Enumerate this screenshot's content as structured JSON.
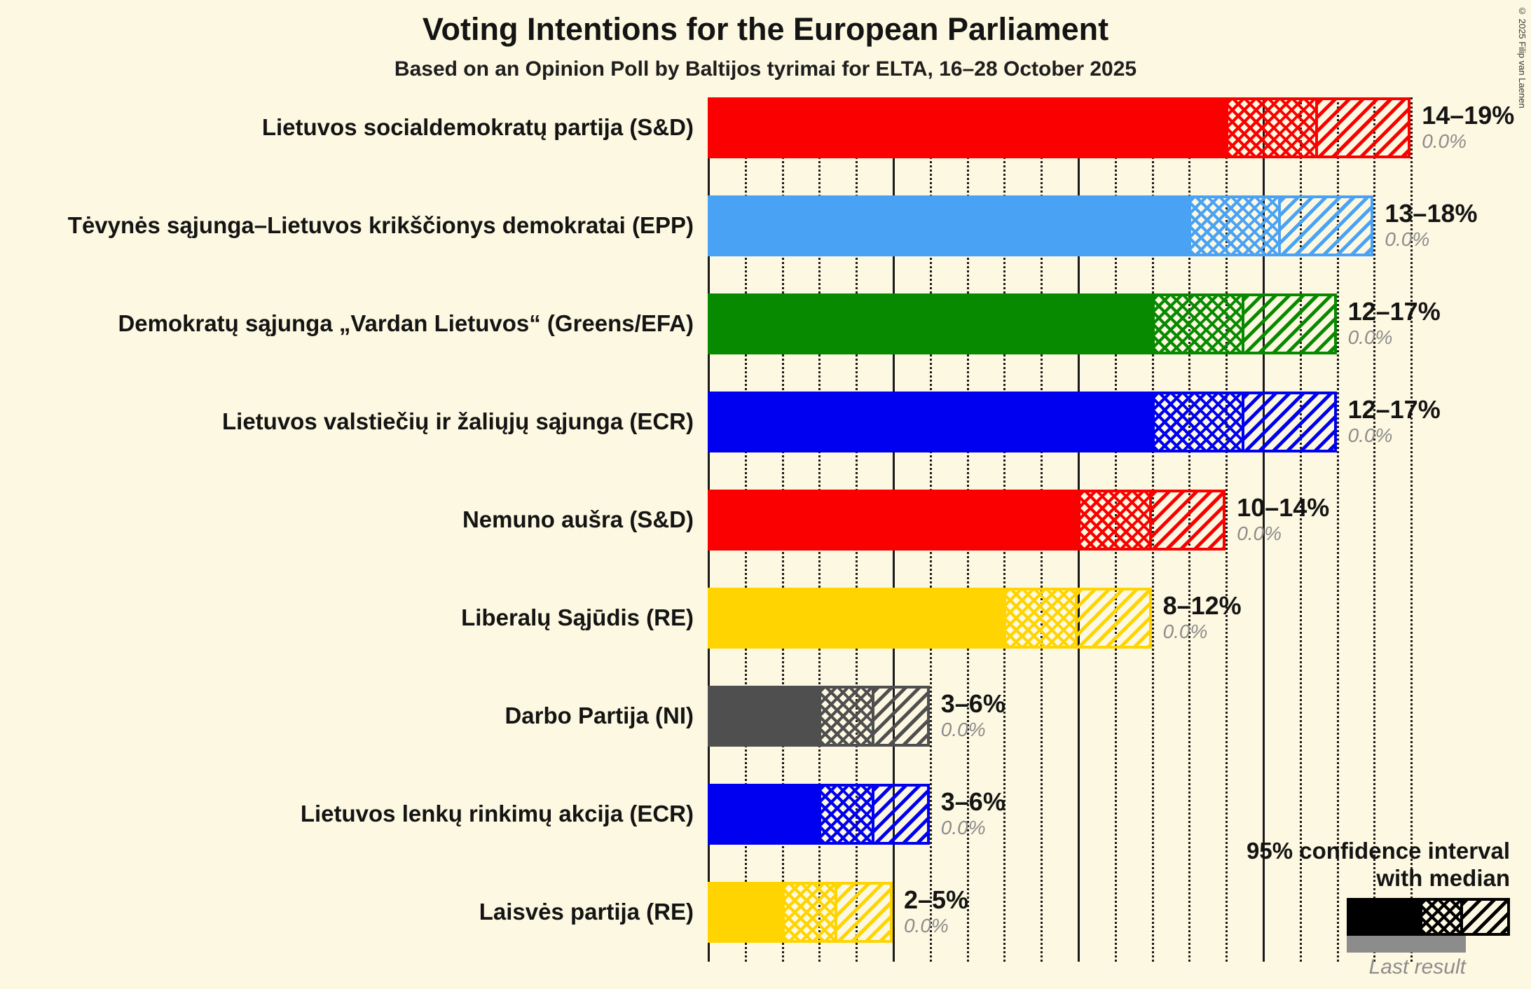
{
  "chart_data": {
    "type": "bar",
    "orientation": "horizontal",
    "title": "Voting Intentions for the European Parliament",
    "subtitle": "Based on an Opinion Poll by Baltijos tyrimai for ELTA, 16–28 October 2025",
    "x_axis": {
      "min": 0,
      "max": 19,
      "unit": "%",
      "dotted_step": 1,
      "solid_step": 5,
      "tick_labels_shown": false
    },
    "legend_position": "bottom-right",
    "bars": [
      {
        "party": "Lietuvos socialdemokratų partija (S&D)",
        "color": "#FA0000",
        "low": 14,
        "median": 16.5,
        "high": 19,
        "range_label": "14–19%",
        "last_result": "0.0%"
      },
      {
        "party": "Tėvynės sąjunga–Lietuvos krikščionys demokratai (EPP)",
        "color": "#4AA2F4",
        "low": 13,
        "median": 15.5,
        "high": 18,
        "range_label": "13–18%",
        "last_result": "0.0%"
      },
      {
        "party": "Demokratų sąjunga „Vardan Lietuvos“ (Greens/EFA)",
        "color": "#088A00",
        "low": 12,
        "median": 14.5,
        "high": 17,
        "range_label": "12–17%",
        "last_result": "0.0%"
      },
      {
        "party": "Lietuvos valstiečių ir žaliųjų sąjunga (ECR)",
        "color": "#0000F0",
        "low": 12,
        "median": 14.5,
        "high": 17,
        "range_label": "12–17%",
        "last_result": "0.0%"
      },
      {
        "party": "Nemuno aušra (S&D)",
        "color": "#FA0000",
        "low": 10,
        "median": 12,
        "high": 14,
        "range_label": "10–14%",
        "last_result": "0.0%"
      },
      {
        "party": "Liberalų Sąjūdis (RE)",
        "color": "#FFD400",
        "low": 8,
        "median": 10,
        "high": 12,
        "range_label": "8–12%",
        "last_result": "0.0%"
      },
      {
        "party": "Darbo Partija (NI)",
        "color": "#4F4F4F",
        "low": 3,
        "median": 4.5,
        "high": 6,
        "range_label": "3–6%",
        "last_result": "0.0%"
      },
      {
        "party": "Lietuvos lenkų rinkimų akcija (ECR)",
        "color": "#0000F0",
        "low": 3,
        "median": 4.5,
        "high": 6,
        "range_label": "3–6%",
        "last_result": "0.0%"
      },
      {
        "party": "Laisvės partija (RE)",
        "color": "#FFD400",
        "low": 2,
        "median": 3.5,
        "high": 5,
        "range_label": "2–5%",
        "last_result": "0.0%"
      }
    ]
  },
  "legend": {
    "line1": "95% confidence interval",
    "line2": "with median",
    "last_result_label": "Last result"
  },
  "copyright": "© 2025 Filip van Laenen",
  "colors": {
    "background": "#FDF8E1",
    "gridline": "#1A1A1A",
    "legend_black": "#000000",
    "last_result_gray": "#8C8C8C"
  }
}
